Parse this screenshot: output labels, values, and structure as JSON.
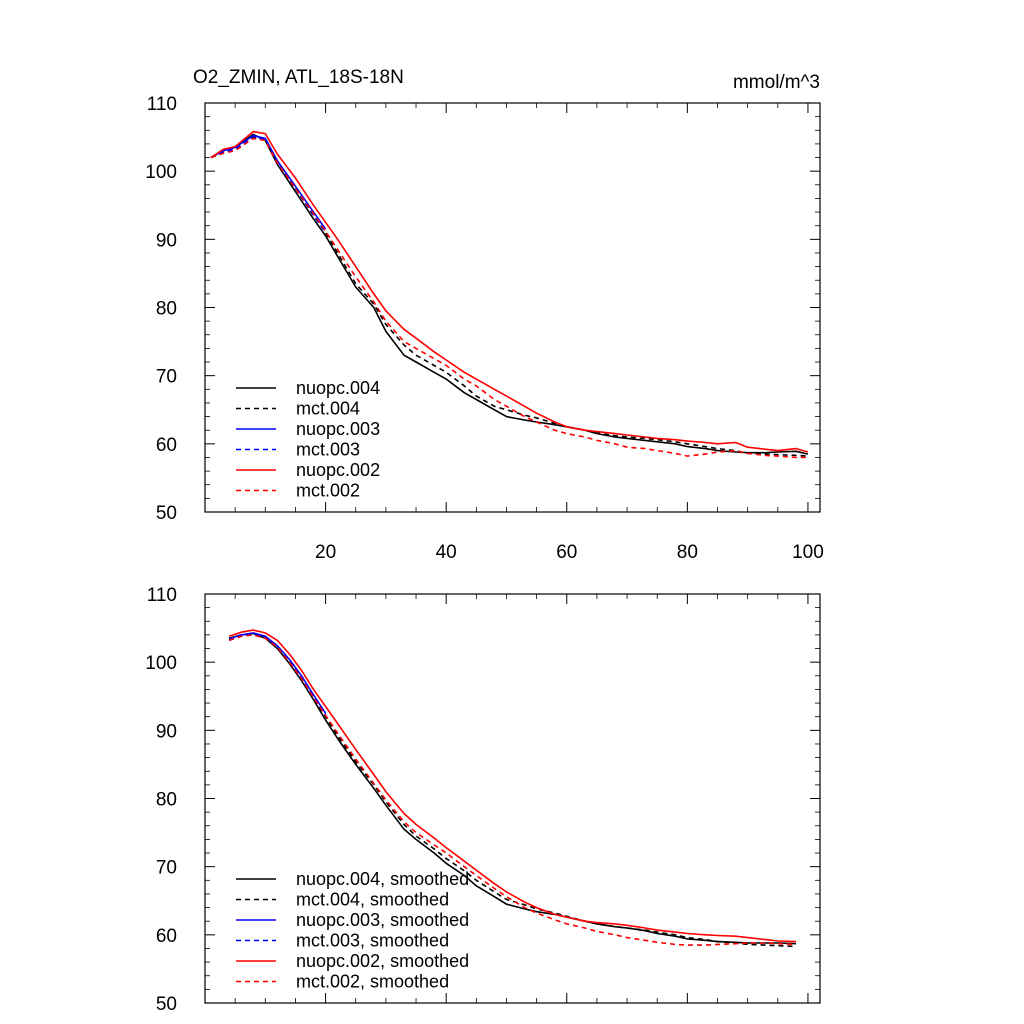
{
  "chart_data": [
    {
      "type": "line",
      "title": "O2_ZMIN, ATL_18S-18N",
      "units": "mmol/m^3",
      "xlabel": "",
      "ylabel": "",
      "xlim": [
        0,
        102
      ],
      "ylim": [
        50,
        110
      ],
      "xticks": [
        20,
        40,
        60,
        80,
        100
      ],
      "yticks": [
        50,
        60,
        70,
        80,
        90,
        100,
        110
      ],
      "show_x_tick_labels": true,
      "grid": false,
      "legend_position": "lower-left",
      "series": [
        {
          "name": "nuopc.004",
          "color": "#000000",
          "dash": "solid",
          "x": [
            1,
            3,
            5,
            8,
            10,
            12,
            15,
            18,
            20,
            22,
            25,
            28,
            30,
            33,
            35,
            38,
            40,
            43,
            45,
            48,
            50,
            53,
            55,
            58,
            60,
            63,
            65,
            68,
            70,
            73,
            75,
            78,
            80,
            83,
            85,
            88,
            90,
            93,
            95,
            98,
            100
          ],
          "y": [
            102.0,
            103.0,
            103.5,
            105.4,
            104.5,
            101.0,
            97.0,
            93.0,
            90.5,
            87.5,
            83.0,
            80.0,
            76.5,
            73.0,
            72.0,
            70.5,
            69.5,
            67.5,
            66.5,
            65.0,
            64.0,
            63.5,
            63.2,
            62.8,
            62.5,
            62.0,
            61.5,
            61.0,
            60.8,
            60.5,
            60.3,
            60.0,
            59.6,
            59.3,
            59.0,
            58.8,
            58.7,
            58.7,
            58.8,
            58.9,
            58.5
          ]
        },
        {
          "name": "mct.004",
          "color": "#000000",
          "dash": "dashed",
          "x": [
            1,
            3,
            5,
            8,
            10,
            12,
            15,
            18,
            20,
            22,
            25,
            28,
            30,
            33,
            35,
            38,
            40,
            43,
            45,
            48,
            50,
            53,
            55,
            58,
            60,
            63,
            65,
            68,
            70,
            73,
            75,
            78,
            80,
            83,
            85,
            88,
            90,
            93,
            95,
            98,
            100
          ],
          "y": [
            102.0,
            102.8,
            103.2,
            105.0,
            104.6,
            101.5,
            97.5,
            93.5,
            91.0,
            88.0,
            83.5,
            80.5,
            77.5,
            74.5,
            73.0,
            71.5,
            70.5,
            68.5,
            67.0,
            65.5,
            65.0,
            64.2,
            63.8,
            63.0,
            62.5,
            62.0,
            61.6,
            61.2,
            61.0,
            60.8,
            60.6,
            60.3,
            60.0,
            59.6,
            59.3,
            59.0,
            58.6,
            58.5,
            58.4,
            58.3,
            58.2
          ]
        },
        {
          "name": "nuopc.003",
          "color": "#0000ff",
          "dash": "solid",
          "x": [
            1,
            3,
            5,
            8,
            10,
            12,
            15,
            18,
            20
          ],
          "y": [
            102.0,
            103.0,
            103.5,
            105.2,
            104.8,
            101.5,
            97.8,
            94.0,
            91.5
          ]
        },
        {
          "name": "mct.003",
          "color": "#0000ff",
          "dash": "dashed",
          "x": [
            1,
            3,
            5,
            8,
            10,
            12,
            15,
            18,
            20
          ],
          "y": [
            102.0,
            102.8,
            103.2,
            104.9,
            104.6,
            101.2,
            97.5,
            93.6,
            91.0
          ]
        },
        {
          "name": "nuopc.002",
          "color": "#ff0000",
          "dash": "solid",
          "x": [
            1,
            3,
            5,
            8,
            10,
            12,
            15,
            18,
            20,
            22,
            25,
            28,
            30,
            33,
            35,
            38,
            40,
            43,
            45,
            48,
            50,
            53,
            55,
            58,
            60,
            63,
            65,
            68,
            70,
            73,
            75,
            78,
            80,
            83,
            85,
            88,
            90,
            93,
            95,
            98,
            100
          ],
          "y": [
            102.0,
            103.2,
            103.6,
            105.8,
            105.5,
            102.5,
            99.0,
            95.0,
            92.5,
            90.0,
            86.0,
            82.0,
            79.5,
            76.8,
            75.5,
            73.5,
            72.3,
            70.5,
            69.5,
            68.0,
            67.0,
            65.5,
            64.5,
            63.2,
            62.5,
            62.0,
            61.8,
            61.5,
            61.3,
            61.0,
            60.8,
            60.6,
            60.4,
            60.2,
            60.0,
            60.2,
            59.5,
            59.2,
            59.0,
            59.3,
            58.8
          ]
        },
        {
          "name": "mct.002",
          "color": "#ff0000",
          "dash": "dashed",
          "x": [
            1,
            3,
            5,
            8,
            10,
            12,
            15,
            18,
            20,
            22,
            25,
            28,
            30,
            33,
            35,
            38,
            40,
            43,
            45,
            48,
            50,
            53,
            55,
            58,
            60,
            63,
            65,
            68,
            70,
            73,
            75,
            78,
            80,
            83,
            85,
            88,
            90,
            93,
            95,
            98,
            100
          ],
          "y": [
            102.0,
            102.6,
            103.0,
            104.8,
            104.5,
            101.2,
            97.5,
            93.8,
            91.2,
            88.5,
            84.5,
            80.8,
            78.0,
            75.0,
            74.0,
            72.5,
            71.5,
            69.5,
            68.5,
            66.5,
            65.5,
            64.0,
            63.2,
            62.0,
            61.5,
            61.0,
            60.5,
            60.0,
            59.5,
            59.3,
            59.0,
            58.6,
            58.2,
            58.5,
            58.8,
            59.0,
            58.6,
            58.3,
            58.2,
            58.0,
            58.0
          ]
        }
      ]
    },
    {
      "type": "line",
      "title": "",
      "units": "",
      "xlabel": "",
      "ylabel": "",
      "xlim": [
        0,
        102
      ],
      "ylim": [
        50,
        110
      ],
      "xticks": [
        20,
        40,
        60,
        80,
        100
      ],
      "yticks": [
        50,
        60,
        70,
        80,
        90,
        100,
        110
      ],
      "show_x_tick_labels": false,
      "grid": false,
      "legend_position": "lower-left",
      "series": [
        {
          "name": "nuopc.004, smoothed",
          "color": "#000000",
          "dash": "solid",
          "x": [
            4,
            6,
            8,
            10,
            12,
            14,
            16,
            18,
            20,
            22,
            25,
            28,
            30,
            33,
            35,
            38,
            40,
            43,
            45,
            48,
            50,
            53,
            55,
            58,
            60,
            63,
            65,
            68,
            70,
            73,
            75,
            78,
            80,
            83,
            85,
            88,
            90,
            93,
            95,
            98
          ],
          "y": [
            103.5,
            104.0,
            104.2,
            103.5,
            102.0,
            99.8,
            97.3,
            94.5,
            91.5,
            88.8,
            85.0,
            81.5,
            79.0,
            75.5,
            74.0,
            72.0,
            70.5,
            68.7,
            67.2,
            65.6,
            64.5,
            63.8,
            63.4,
            63.0,
            62.6,
            62.0,
            61.6,
            61.2,
            61.0,
            60.6,
            60.2,
            59.8,
            59.4,
            59.2,
            59.0,
            58.9,
            58.8,
            58.8,
            58.8,
            58.7
          ]
        },
        {
          "name": "mct.004, smoothed",
          "color": "#000000",
          "dash": "dashed",
          "x": [
            4,
            6,
            8,
            10,
            12,
            14,
            16,
            18,
            20,
            22,
            25,
            28,
            30,
            33,
            35,
            38,
            40,
            43,
            45,
            48,
            50,
            53,
            55,
            58,
            60,
            63,
            65,
            68,
            70,
            73,
            75,
            78,
            80,
            83,
            85,
            88,
            90,
            93,
            95,
            98
          ],
          "y": [
            103.3,
            103.9,
            104.1,
            103.6,
            102.2,
            100.0,
            97.6,
            94.8,
            92.0,
            89.2,
            85.4,
            82.0,
            79.5,
            76.2,
            74.5,
            72.6,
            71.2,
            69.4,
            68.0,
            66.3,
            65.2,
            64.4,
            63.8,
            63.2,
            62.7,
            62.0,
            61.6,
            61.2,
            61.0,
            60.7,
            60.4,
            60.0,
            59.6,
            59.3,
            59.0,
            58.8,
            58.6,
            58.5,
            58.4,
            58.3
          ]
        },
        {
          "name": "nuopc.003, smoothed",
          "color": "#0000ff",
          "dash": "solid",
          "x": [
            4,
            6,
            8,
            10,
            12,
            14,
            16,
            18,
            20
          ],
          "y": [
            103.4,
            104.0,
            104.3,
            103.8,
            102.4,
            100.4,
            98.0,
            95.2,
            92.5
          ]
        },
        {
          "name": "mct.003, smoothed",
          "color": "#0000ff",
          "dash": "dashed",
          "x": [
            4,
            6,
            8,
            10,
            12,
            14,
            16,
            18,
            20
          ],
          "y": [
            103.2,
            103.8,
            104.1,
            103.6,
            102.3,
            100.2,
            97.8,
            95.0,
            92.3
          ]
        },
        {
          "name": "nuopc.002, smoothed",
          "color": "#ff0000",
          "dash": "solid",
          "x": [
            4,
            6,
            8,
            10,
            12,
            14,
            16,
            18,
            20,
            22,
            25,
            28,
            30,
            33,
            35,
            38,
            40,
            43,
            45,
            48,
            50,
            53,
            55,
            58,
            60,
            63,
            65,
            68,
            70,
            73,
            75,
            78,
            80,
            83,
            85,
            88,
            90,
            93,
            95,
            98
          ],
          "y": [
            103.8,
            104.4,
            104.7,
            104.3,
            103.2,
            101.2,
            98.8,
            96.0,
            93.5,
            91.0,
            87.2,
            83.5,
            81.0,
            77.8,
            76.2,
            74.2,
            72.8,
            70.8,
            69.5,
            67.5,
            66.3,
            64.8,
            64.0,
            63.0,
            62.6,
            62.0,
            61.8,
            61.6,
            61.4,
            61.0,
            60.7,
            60.4,
            60.2,
            60.0,
            59.9,
            59.8,
            59.6,
            59.3,
            59.1,
            59.0
          ]
        },
        {
          "name": "mct.002, smoothed",
          "color": "#ff0000",
          "dash": "dashed",
          "x": [
            4,
            6,
            8,
            10,
            12,
            14,
            16,
            18,
            20,
            22,
            25,
            28,
            30,
            33,
            35,
            38,
            40,
            43,
            45,
            48,
            50,
            53,
            55,
            58,
            60,
            63,
            65,
            68,
            70,
            73,
            75,
            78,
            80,
            83,
            85,
            88,
            90,
            93,
            95,
            98
          ],
          "y": [
            103.2,
            103.8,
            104.0,
            103.5,
            102.2,
            100.0,
            97.6,
            94.8,
            92.2,
            89.6,
            85.8,
            82.2,
            79.8,
            76.6,
            75.0,
            73.2,
            72.0,
            70.0,
            68.7,
            66.8,
            65.6,
            64.0,
            63.2,
            62.2,
            61.6,
            61.0,
            60.5,
            60.0,
            59.6,
            59.2,
            58.9,
            58.6,
            58.5,
            58.5,
            58.6,
            58.7,
            58.8,
            58.8,
            58.7,
            58.6
          ]
        }
      ]
    }
  ]
}
